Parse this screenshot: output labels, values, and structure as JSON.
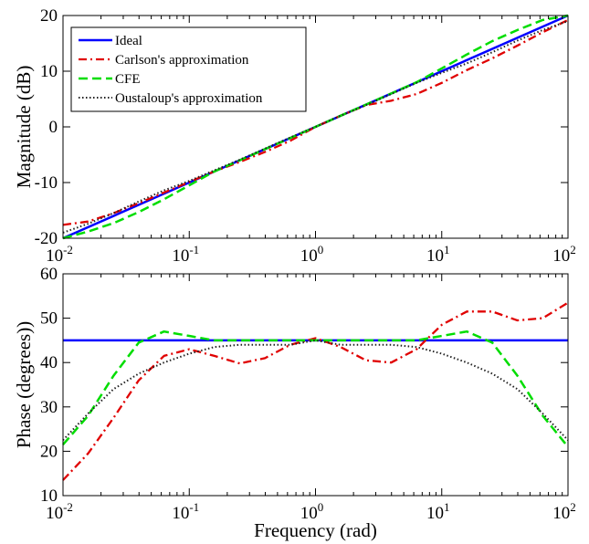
{
  "chart_data": [
    {
      "type": "line",
      "title": "",
      "xlabel": "",
      "ylabel": "Magnitude (dB)",
      "xscale": "log",
      "xlim": [
        0.01,
        100
      ],
      "ylim": [
        -20,
        20
      ],
      "yticks": [
        -20,
        -10,
        0,
        10,
        20
      ],
      "xticks": [
        {
          "value": 0.01,
          "base": "10",
          "exp": "-2"
        },
        {
          "value": 0.1,
          "base": "10",
          "exp": "-1"
        },
        {
          "value": 1,
          "base": "10",
          "exp": "0"
        },
        {
          "value": 10,
          "base": "10",
          "exp": "1"
        },
        {
          "value": 100,
          "base": "10",
          "exp": "2"
        }
      ],
      "grid": false,
      "legend": "top-left",
      "series": [
        {
          "name": "Ideal",
          "color": "#0000ff",
          "style": "solid",
          "x": [
            0.01,
            100
          ],
          "y": [
            -20,
            20
          ]
        },
        {
          "name": "Carlson's approximation",
          "color": "#e00000",
          "style": "dashdot",
          "x": [
            0.01,
            0.0158,
            0.0251,
            0.0398,
            0.0631,
            0.1,
            0.158,
            0.251,
            0.398,
            0.631,
            1,
            1.58,
            2.51,
            3.98,
            6.31,
            10,
            15.8,
            25.1,
            39.8,
            63.1,
            100
          ],
          "y": [
            -17.6,
            -17.0,
            -15.5,
            -13.7,
            -11.8,
            -9.9,
            -8.0,
            -6.3,
            -4.5,
            -2.5,
            0,
            2.0,
            3.9,
            4.7,
            5.9,
            7.9,
            10.2,
            12.3,
            14.6,
            17.0,
            19.2
          ]
        },
        {
          "name": "CFE",
          "color": "#00dd00",
          "style": "dashed",
          "x": [
            0.01,
            0.0158,
            0.0251,
            0.0398,
            0.0631,
            0.1,
            0.158,
            0.251,
            0.398,
            0.631,
            1,
            1.58,
            2.51,
            3.98,
            6.31,
            10,
            15.8,
            25.1,
            39.8,
            63.1,
            100
          ],
          "y": [
            -20.0,
            -18.8,
            -17.3,
            -15.3,
            -13.0,
            -10.5,
            -8.0,
            -6.0,
            -4.0,
            -2.0,
            0,
            2.0,
            4.0,
            6.0,
            8.0,
            10.5,
            13.0,
            15.4,
            17.4,
            19.2,
            20.0
          ]
        },
        {
          "name": "Oustaloup's approximation",
          "color": "#222222",
          "style": "dotted",
          "x": [
            0.01,
            0.0158,
            0.0251,
            0.0398,
            0.0631,
            0.1,
            0.158,
            0.251,
            0.398,
            0.631,
            1,
            1.58,
            2.51,
            3.98,
            6.31,
            10,
            15.8,
            25.1,
            39.8,
            63.1,
            100
          ],
          "y": [
            -19.0,
            -17.4,
            -15.5,
            -13.4,
            -11.4,
            -9.7,
            -7.8,
            -5.9,
            -3.9,
            -1.9,
            0,
            2.0,
            3.9,
            5.9,
            7.9,
            9.7,
            11.4,
            13.4,
            15.5,
            17.4,
            19.0
          ]
        }
      ]
    },
    {
      "type": "line",
      "title": "",
      "xlabel": "Frequency (rad)",
      "ylabel": "Phase (degrees))",
      "xscale": "log",
      "xlim": [
        0.01,
        100
      ],
      "ylim": [
        10,
        60
      ],
      "yticks": [
        10,
        20,
        30,
        40,
        50,
        60
      ],
      "xticks": [
        {
          "value": 0.01,
          "base": "10",
          "exp": "-2"
        },
        {
          "value": 0.1,
          "base": "10",
          "exp": "-1"
        },
        {
          "value": 1,
          "base": "10",
          "exp": "0"
        },
        {
          "value": 10,
          "base": "10",
          "exp": "1"
        },
        {
          "value": 100,
          "base": "10",
          "exp": "2"
        }
      ],
      "grid": false,
      "legend": "none",
      "series": [
        {
          "name": "Ideal",
          "color": "#0000ff",
          "style": "solid",
          "x": [
            0.01,
            100
          ],
          "y": [
            45,
            45
          ]
        },
        {
          "name": "Carlson's approximation",
          "color": "#e00000",
          "style": "dashdot",
          "x": [
            0.01,
            0.0158,
            0.0251,
            0.0398,
            0.0631,
            0.1,
            0.158,
            0.251,
            0.398,
            0.631,
            1,
            1.58,
            2.51,
            3.98,
            6.31,
            10,
            15.8,
            25.1,
            39.8,
            63.1,
            100
          ],
          "y": [
            13.5,
            19.5,
            27.5,
            36.0,
            41.5,
            43.0,
            41.5,
            39.8,
            41.0,
            44.0,
            45.5,
            43.5,
            40.5,
            40.0,
            43.0,
            48.5,
            51.5,
            51.5,
            49.5,
            50.0,
            53.5
          ]
        },
        {
          "name": "CFE",
          "color": "#00dd00",
          "style": "dashed",
          "x": [
            0.01,
            0.0158,
            0.0251,
            0.0398,
            0.0631,
            0.1,
            0.158,
            0.251,
            0.398,
            0.631,
            1,
            1.58,
            2.51,
            3.98,
            6.31,
            10,
            15.8,
            25.1,
            39.8,
            63.1,
            100
          ],
          "y": [
            21.5,
            28.0,
            37.0,
            44.5,
            47.0,
            46.0,
            45.0,
            45.0,
            45.0,
            45.0,
            45.0,
            45.0,
            45.0,
            45.0,
            45.0,
            46.0,
            47.0,
            44.5,
            37.0,
            28.0,
            21.0
          ]
        },
        {
          "name": "Oustaloup's approximation",
          "color": "#222222",
          "style": "dotted",
          "x": [
            0.01,
            0.0158,
            0.0251,
            0.0398,
            0.0631,
            0.1,
            0.158,
            0.251,
            0.398,
            0.631,
            1,
            1.58,
            2.51,
            3.98,
            6.31,
            10,
            15.8,
            25.1,
            39.8,
            63.1,
            100
          ],
          "y": [
            22.5,
            28.5,
            34.0,
            37.5,
            40.0,
            42.0,
            43.5,
            44.0,
            44.0,
            44.0,
            45.0,
            44.0,
            44.0,
            44.0,
            43.5,
            42.0,
            40.0,
            37.5,
            34.0,
            28.5,
            22.5
          ]
        }
      ]
    }
  ]
}
